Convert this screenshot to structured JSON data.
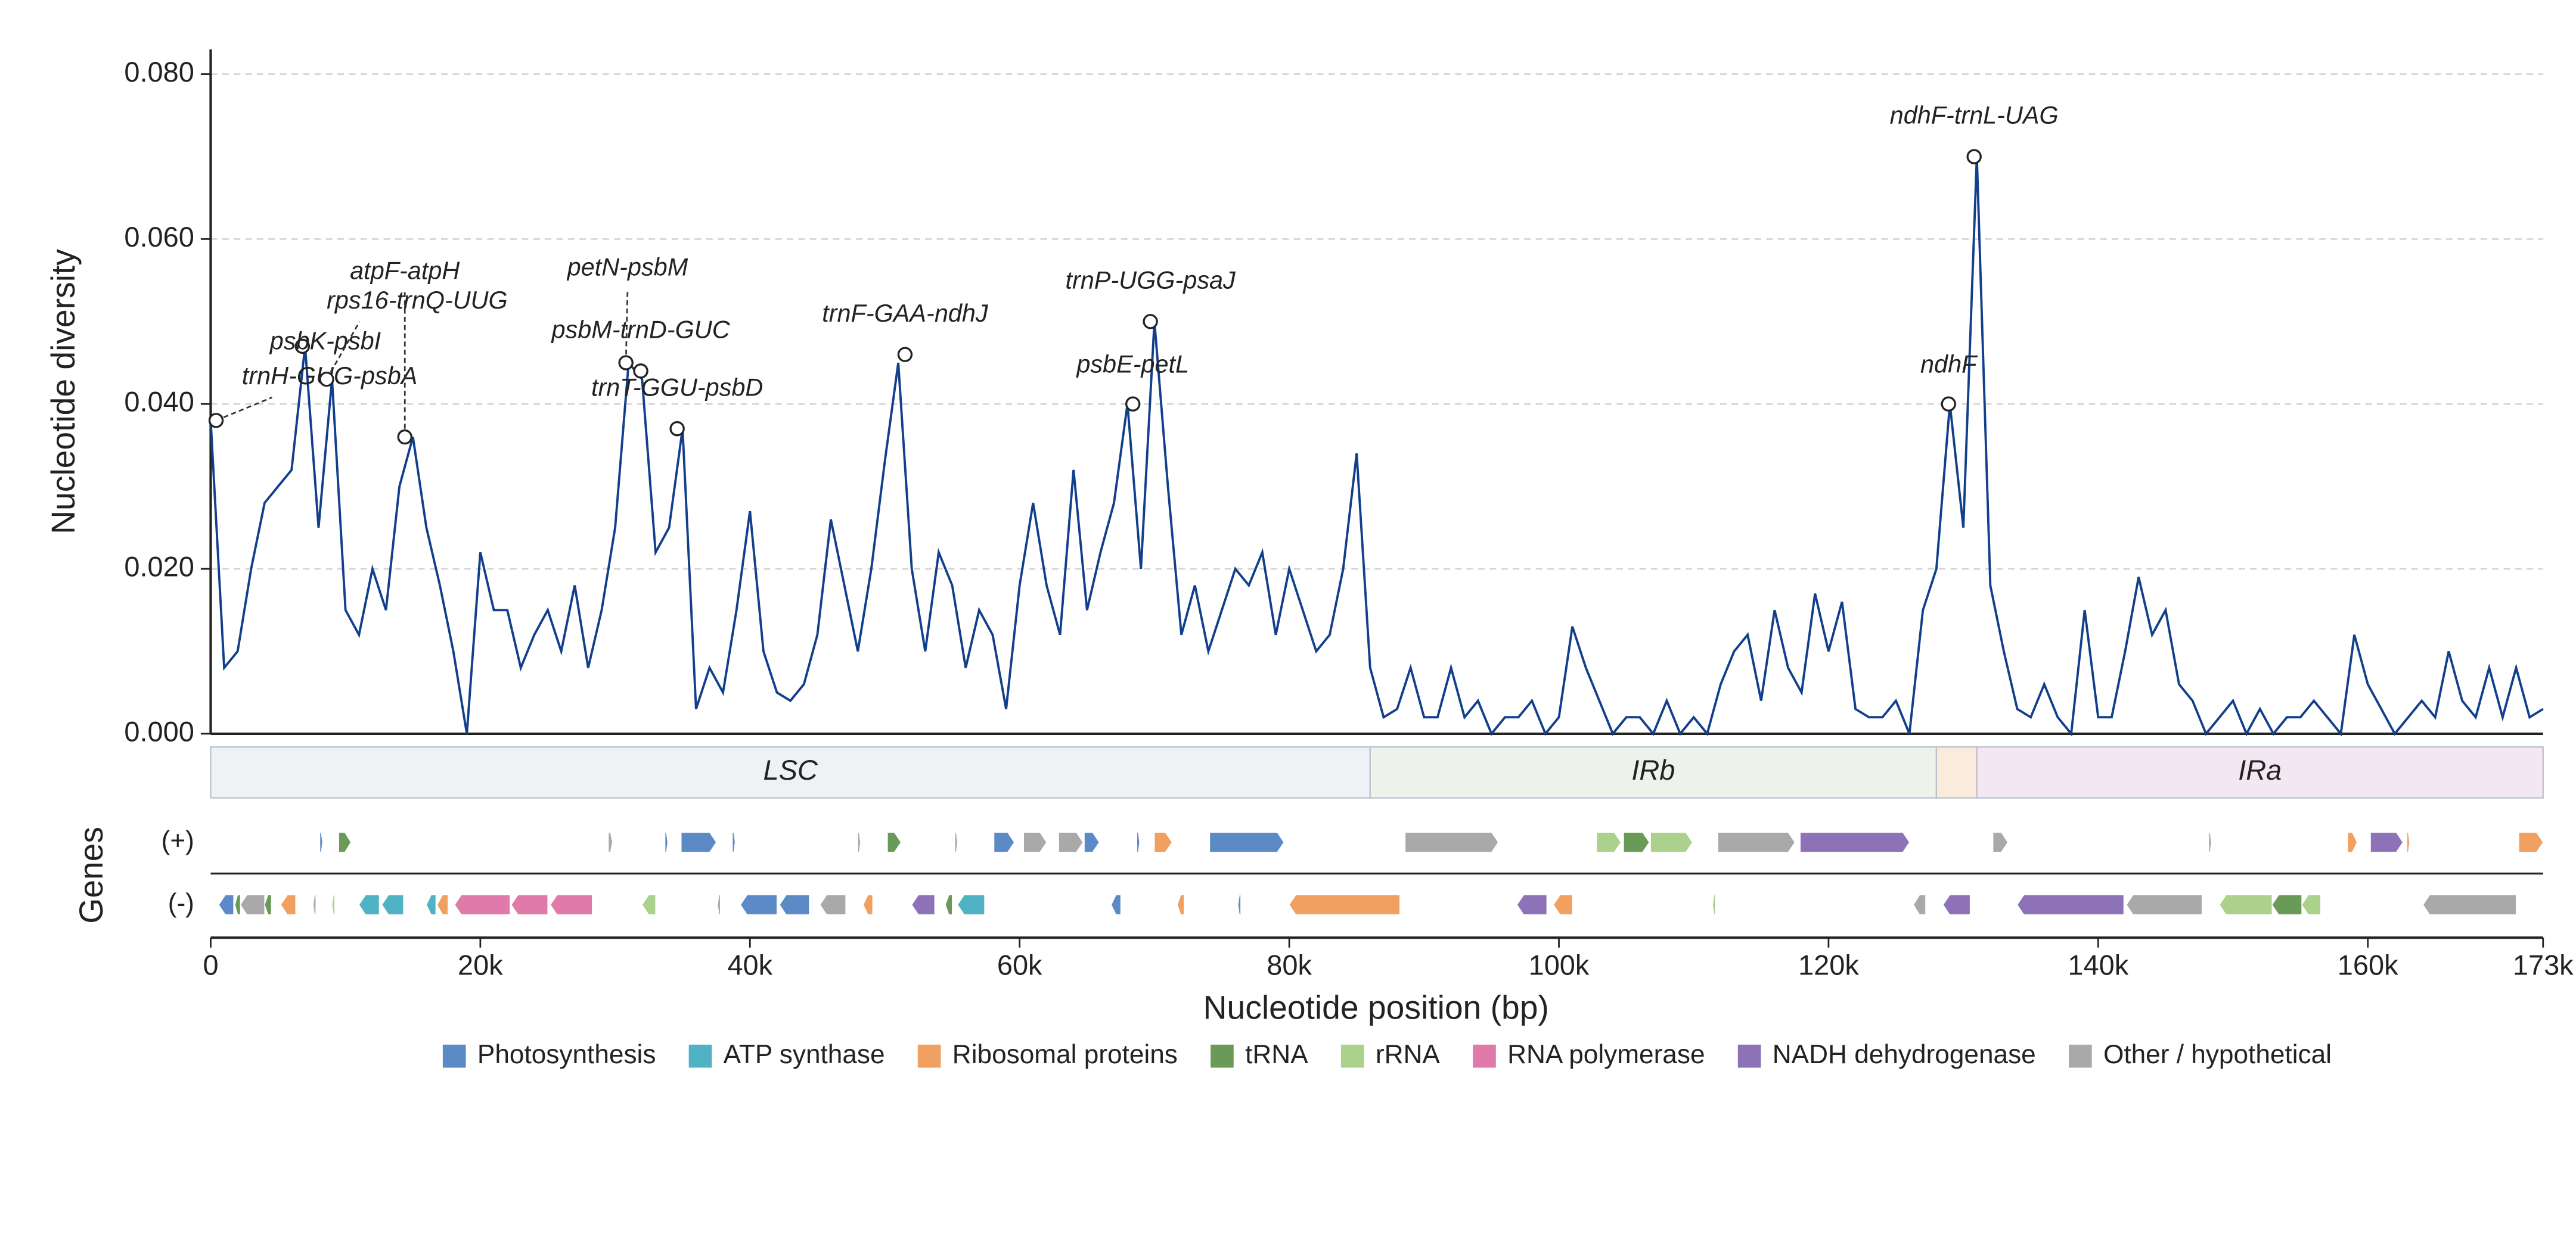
{
  "chart_data": {
    "type": "line",
    "y_label": "Nucleotide diversity",
    "x_label": "Nucleotide position (bp)",
    "genes_label": "Genes",
    "color": "#123f8c",
    "grid": true,
    "xlim": [
      0,
      173000
    ],
    "xticks": [
      0,
      {
        "value": 20000,
        "label": "20k"
      },
      {
        "value": 40000,
        "label": "40k"
      },
      {
        "value": 60000,
        "label": "60k"
      },
      {
        "value": 80000,
        "label": "80k"
      },
      {
        "value": 100000,
        "label": "100k"
      },
      {
        "value": 120000,
        "label": "120k"
      },
      {
        "value": 140000,
        "label": "140k"
      },
      {
        "value": 160000,
        "label": "160k"
      },
      {
        "value": 173000,
        "label": "173k"
      }
    ],
    "ylim": [
      0,
      0.083
    ],
    "yticks": [
      {
        "value": 0,
        "label": "0.000"
      },
      {
        "value": 0.02,
        "label": "0.020"
      },
      {
        "value": 0.04,
        "label": "0.040"
      },
      {
        "value": 0.06,
        "label": "0.060"
      },
      {
        "value": 0.08,
        "label": "0.080"
      }
    ],
    "x": [
      0,
      1000,
      2000,
      3000,
      4000,
      5000,
      6000,
      7000,
      8000,
      9000,
      10000,
      11000,
      12000,
      13000,
      14000,
      15000,
      16000,
      17000,
      18000,
      19000,
      20000,
      21000,
      22000,
      23000,
      24000,
      25000,
      26000,
      27000,
      28000,
      29000,
      30000,
      31000,
      32000,
      33000,
      34000,
      35000,
      36000,
      37000,
      38000,
      39000,
      40000,
      41000,
      42000,
      43000,
      44000,
      45000,
      46000,
      47000,
      48000,
      49000,
      50000,
      51000,
      52000,
      53000,
      54000,
      55000,
      56000,
      57000,
      58000,
      59000,
      60000,
      61000,
      62000,
      63000,
      64000,
      65000,
      66000,
      67000,
      68000,
      69000,
      70000,
      71000,
      72000,
      73000,
      74000,
      75000,
      76000,
      77000,
      78000,
      79000,
      80000,
      81000,
      82000,
      83000,
      84000,
      85000,
      86000,
      87000,
      88000,
      89000,
      90000,
      91000,
      92000,
      93000,
      94000,
      95000,
      96000,
      97000,
      98000,
      99000,
      100000,
      101000,
      102000,
      103000,
      104000,
      105000,
      106000,
      107000,
      108000,
      109000,
      110000,
      111000,
      112000,
      113000,
      114000,
      115000,
      116000,
      117000,
      118000,
      119000,
      120000,
      121000,
      122000,
      123000,
      124000,
      125000,
      126000,
      127000,
      128000,
      129000,
      130000,
      131000,
      132000,
      133000,
      134000,
      135000,
      136000,
      137000,
      138000,
      139000,
      140000,
      141000,
      142000,
      143000,
      144000,
      145000,
      146000,
      147000,
      148000,
      149000,
      150000,
      151000,
      152000,
      153000,
      154000,
      155000,
      156000,
      157000,
      158000,
      159000,
      160000,
      161000,
      162000,
      163000,
      164000,
      165000,
      166000,
      167000,
      168000,
      169000,
      170000,
      171000,
      172000,
      173000
    ],
    "values": [
      0.038,
      0.008,
      0.01,
      0.02,
      0.028,
      0.03,
      0.032,
      0.047,
      0.025,
      0.043,
      0.015,
      0.012,
      0.02,
      0.015,
      0.03,
      0.036,
      0.025,
      0.018,
      0.01,
      0.0,
      0.022,
      0.015,
      0.015,
      0.008,
      0.012,
      0.015,
      0.01,
      0.018,
      0.008,
      0.015,
      0.025,
      0.045,
      0.043,
      0.022,
      0.025,
      0.037,
      0.003,
      0.008,
      0.005,
      0.015,
      0.027,
      0.01,
      0.005,
      0.004,
      0.006,
      0.012,
      0.026,
      0.018,
      0.01,
      0.02,
      0.033,
      0.045,
      0.02,
      0.01,
      0.022,
      0.018,
      0.008,
      0.015,
      0.012,
      0.003,
      0.018,
      0.028,
      0.018,
      0.012,
      0.032,
      0.015,
      0.022,
      0.028,
      0.04,
      0.02,
      0.05,
      0.03,
      0.012,
      0.018,
      0.01,
      0.015,
      0.02,
      0.018,
      0.022,
      0.012,
      0.02,
      0.015,
      0.01,
      0.012,
      0.02,
      0.034,
      0.008,
      0.002,
      0.003,
      0.008,
      0.002,
      0.002,
      0.008,
      0.002,
      0.004,
      0.0,
      0.002,
      0.002,
      0.004,
      0.0,
      0.002,
      0.013,
      0.008,
      0.004,
      0.0,
      0.002,
      0.002,
      0.0,
      0.004,
      0.0,
      0.002,
      0.0,
      0.006,
      0.01,
      0.012,
      0.004,
      0.015,
      0.008,
      0.005,
      0.017,
      0.01,
      0.016,
      0.003,
      0.002,
      0.002,
      0.004,
      0.0,
      0.015,
      0.02,
      0.04,
      0.025,
      0.07,
      0.018,
      0.01,
      0.003,
      0.002,
      0.006,
      0.002,
      0.0,
      0.015,
      0.002,
      0.002,
      0.01,
      0.019,
      0.012,
      0.015,
      0.006,
      0.004,
      0.0,
      0.002,
      0.004,
      0.0,
      0.003,
      0.0,
      0.002,
      0.002,
      0.004,
      0.002,
      0.0,
      0.012,
      0.006,
      0.003,
      0.0,
      0.002,
      0.004,
      0.002,
      0.01,
      0.004,
      0.002,
      0.008,
      0.002,
      0.008,
      0.002,
      0.003
    ],
    "annotations": [
      {
        "label": "trnH-GUG-psbA",
        "x": 400,
        "y": 0.038
      },
      {
        "label": "psbK-psbI",
        "x": 6800,
        "y": 0.047
      },
      {
        "label": "rps16-trnQ-UUG",
        "x": 8600,
        "y": 0.043
      },
      {
        "label": "atpF-atpH",
        "x": 14400,
        "y": 0.036
      },
      {
        "label": "petN-psbM",
        "x": 30800,
        "y": 0.045
      },
      {
        "label": "psbM-trnD-GUC",
        "x": 31900,
        "y": 0.044
      },
      {
        "label": "trnT-GGU-psbD",
        "x": 34600,
        "y": 0.037
      },
      {
        "label": "trnF-GAA-ndhJ",
        "x": 51500,
        "y": 0.046
      },
      {
        "label": "psbE-petL",
        "x": 68400,
        "y": 0.04
      },
      {
        "label": "trnP-UGG-psaJ",
        "x": 69700,
        "y": 0.05
      },
      {
        "label": "ndhF",
        "x": 128900,
        "y": 0.04
      },
      {
        "label": "ndhF-trnL-UAG",
        "x": 130800,
        "y": 0.07
      }
    ],
    "regions": [
      {
        "name": "LSC",
        "start": 0,
        "end": 86000,
        "color": "#eef2f5"
      },
      {
        "name": "IRb",
        "start": 86000,
        "end": 128000,
        "color": "#edf2ea"
      },
      {
        "name": null,
        "start": 128000,
        "end": 131000,
        "color": "#fbebdc"
      },
      {
        "name": "IRa",
        "start": 131000,
        "end": 173000,
        "color": "#f3e7f2"
      }
    ],
    "gene_categories": [
      {
        "name": "Photosynthesis",
        "color": "#5b8ac6"
      },
      {
        "name": "ATP synthase",
        "color": "#4fb3c4"
      },
      {
        "name": "Ribosomal proteins",
        "color": "#f0a060"
      },
      {
        "name": "tRNA",
        "color": "#6a9a58"
      },
      {
        "name": "rRNA",
        "color": "#acd18c"
      },
      {
        "name": "RNA polymerase",
        "color": "#e07aab"
      },
      {
        "name": "NADH dehydrogenase",
        "color": "#8d72b8"
      },
      {
        "name": "Other / hypothetical",
        "color": "#a9a9a9"
      }
    ],
    "gene_tracks": [
      {
        "label": "(+)",
        "genes": [
          [
            8100,
            8300,
            0
          ],
          [
            9500,
            10400,
            3
          ],
          [
            29500,
            29800,
            7
          ],
          [
            33700,
            33900,
            0
          ],
          [
            34900,
            37500,
            0
          ],
          [
            38700,
            38900,
            0
          ],
          [
            48000,
            48200,
            7
          ],
          [
            50200,
            51200,
            3
          ],
          [
            55200,
            55400,
            7
          ],
          [
            58100,
            59600,
            0
          ],
          [
            60300,
            62000,
            7
          ],
          [
            62900,
            64700,
            7
          ],
          [
            64800,
            65900,
            0
          ],
          [
            68700,
            68900,
            0
          ],
          [
            70000,
            71300,
            2
          ],
          [
            74100,
            79600,
            0
          ],
          [
            88600,
            95500,
            7
          ],
          [
            102800,
            104600,
            4
          ],
          [
            104800,
            106700,
            3
          ],
          [
            106800,
            109900,
            4
          ],
          [
            111800,
            117500,
            7
          ],
          [
            117900,
            126000,
            6
          ],
          [
            132200,
            133300,
            7
          ],
          [
            148200,
            148400,
            7
          ],
          [
            158500,
            159200,
            2
          ],
          [
            160200,
            162600,
            6
          ],
          [
            162900,
            163100,
            2
          ],
          [
            171200,
            173000,
            2
          ]
        ]
      },
      {
        "label": "(-)",
        "genes": [
          [
            600,
            1700,
            0
          ],
          [
            1800,
            2200,
            3
          ],
          [
            2200,
            4000,
            7
          ],
          [
            4000,
            4500,
            3
          ],
          [
            5200,
            6300,
            2
          ],
          [
            7600,
            7800,
            7
          ],
          [
            9000,
            9200,
            4
          ],
          [
            11000,
            12500,
            1
          ],
          [
            12700,
            14300,
            1
          ],
          [
            16000,
            16700,
            1
          ],
          [
            16800,
            17600,
            2
          ],
          [
            18100,
            22200,
            5
          ],
          [
            22300,
            25000,
            5
          ],
          [
            25200,
            28300,
            5
          ],
          [
            32000,
            33000,
            4
          ],
          [
            37600,
            37800,
            7
          ],
          [
            39300,
            42000,
            0
          ],
          [
            42200,
            44400,
            0
          ],
          [
            45200,
            47100,
            7
          ],
          [
            48400,
            49100,
            2
          ],
          [
            52000,
            53700,
            6
          ],
          [
            54500,
            55000,
            3
          ],
          [
            55400,
            57400,
            1
          ],
          [
            66800,
            67500,
            0
          ],
          [
            71700,
            72200,
            2
          ],
          [
            76200,
            76400,
            0
          ],
          [
            80000,
            88200,
            2
          ],
          [
            96900,
            99100,
            6
          ],
          [
            99600,
            101000,
            2
          ],
          [
            111400,
            111600,
            4
          ],
          [
            126300,
            127200,
            7
          ],
          [
            128500,
            130500,
            6
          ],
          [
            134000,
            141900,
            6
          ],
          [
            142100,
            147700,
            7
          ],
          [
            149000,
            152900,
            4
          ],
          [
            152900,
            155100,
            3
          ],
          [
            155100,
            156500,
            4
          ],
          [
            164100,
            171000,
            7
          ]
        ]
      }
    ]
  }
}
